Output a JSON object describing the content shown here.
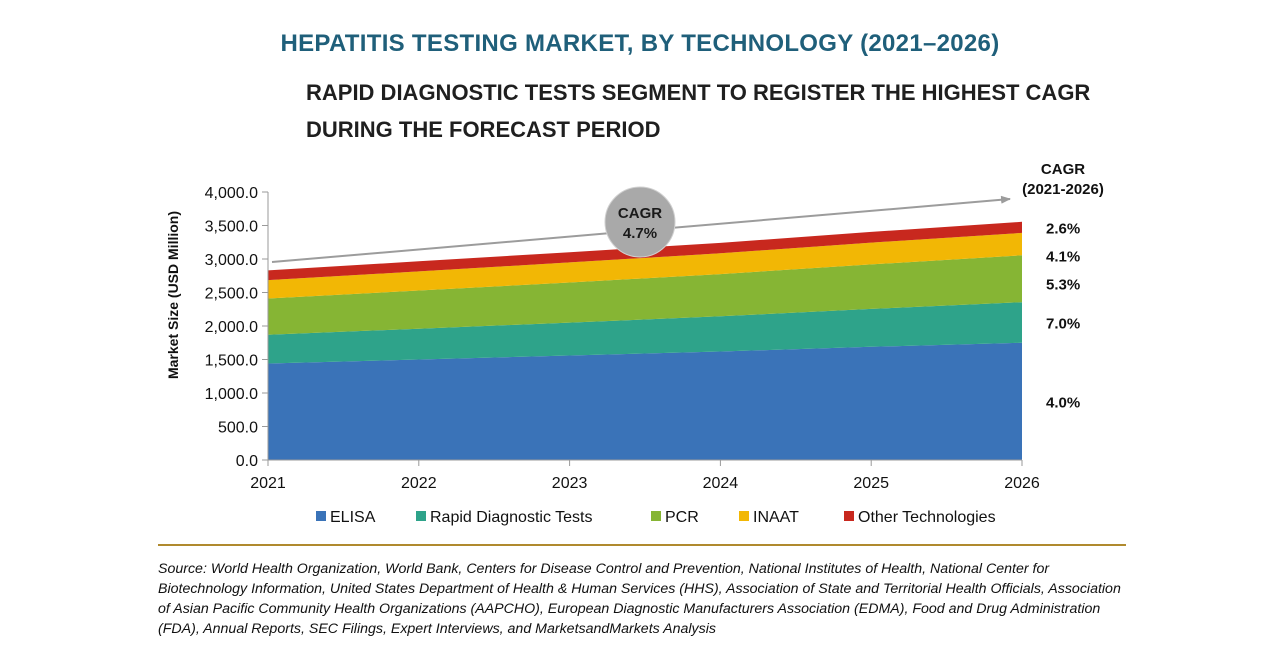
{
  "title": "HEPATITIS TESTING MARKET, BY TECHNOLOGY (2021–2026)",
  "subtitle": "RAPID DIAGNOSTIC TESTS SEGMENT TO REGISTER THE HIGHEST CAGR DURING THE FORECAST PERIOD",
  "chart_data": {
    "type": "area",
    "stacked": true,
    "x": [
      "2021",
      "2022",
      "2023",
      "2024",
      "2025",
      "2026"
    ],
    "ylabel": "Market Size (USD Million)",
    "ylim": [
      0,
      4000
    ],
    "yticks": [
      "0.0",
      "500.0",
      "1,000.0",
      "1,500.0",
      "2,000.0",
      "2,500.0",
      "3,000.0",
      "3,500.0",
      "4,000.0"
    ],
    "series": [
      {
        "name": "ELISA",
        "color": "#3a73b8",
        "values": [
          1440,
          1500,
          1560,
          1620,
          1690,
          1750
        ],
        "cagr": "4.0%"
      },
      {
        "name": "Rapid Diagnostic Tests",
        "color": "#2ea38a",
        "values": [
          430,
          460,
          490,
          525,
          565,
          605
        ],
        "cagr": "7.0%"
      },
      {
        "name": "PCR",
        "color": "#86b534",
        "values": [
          540,
          570,
          600,
          630,
          665,
          700
        ],
        "cagr": "5.3%"
      },
      {
        "name": "INAAT",
        "color": "#f2b705",
        "values": [
          275,
          285,
          300,
          310,
          325,
          335
        ],
        "cagr": "4.1%"
      },
      {
        "name": "Other Technologies",
        "color": "#c8281e",
        "values": [
          145,
          150,
          152,
          156,
          160,
          165
        ],
        "cagr": "2.6%"
      }
    ],
    "cagr_header": [
      "CAGR",
      "(2021-2026)"
    ],
    "overall_cagr": {
      "label": "CAGR",
      "value": "4.7%"
    },
    "legend_position": "bottom"
  },
  "source": "Source: World Health Organization, World Bank, Centers for Disease Control and Prevention, National Institutes of Health, National Center for Biotechnology Information, United States Department of Health & Human Services (HHS), Association of State and Territorial Health Officials, Association of Asian Pacific Community Health Organizations (AAPCHO), European Diagnostic Manufacturers Association (EDMA), Food and Drug Administration (FDA), Annual Reports, SEC Filings, Expert Interviews, and MarketsandMarkets Analysis"
}
